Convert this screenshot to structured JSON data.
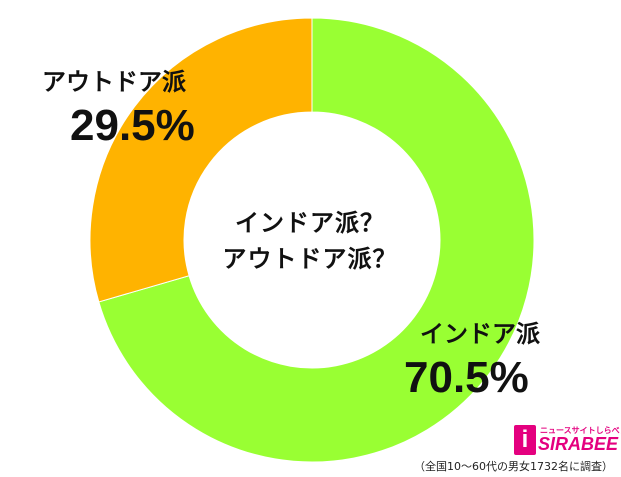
{
  "chart_data": {
    "type": "pie",
    "center_text": [
      "インドア派？",
      "アウトドア派？"
    ],
    "slices": [
      {
        "name": "インドア派",
        "value": 70.5,
        "label": "70.5%",
        "color": "#99ff33"
      },
      {
        "name": "アウトドア派",
        "value": 29.5,
        "label": "29.5%",
        "color": "#ffb300"
      }
    ]
  },
  "logo": {
    "mark": "i",
    "tagline": "ニュースサイトしらべぇ",
    "brand": "SIRABEE"
  },
  "footnote": "（全国10～60代の男女1732名に調査）"
}
